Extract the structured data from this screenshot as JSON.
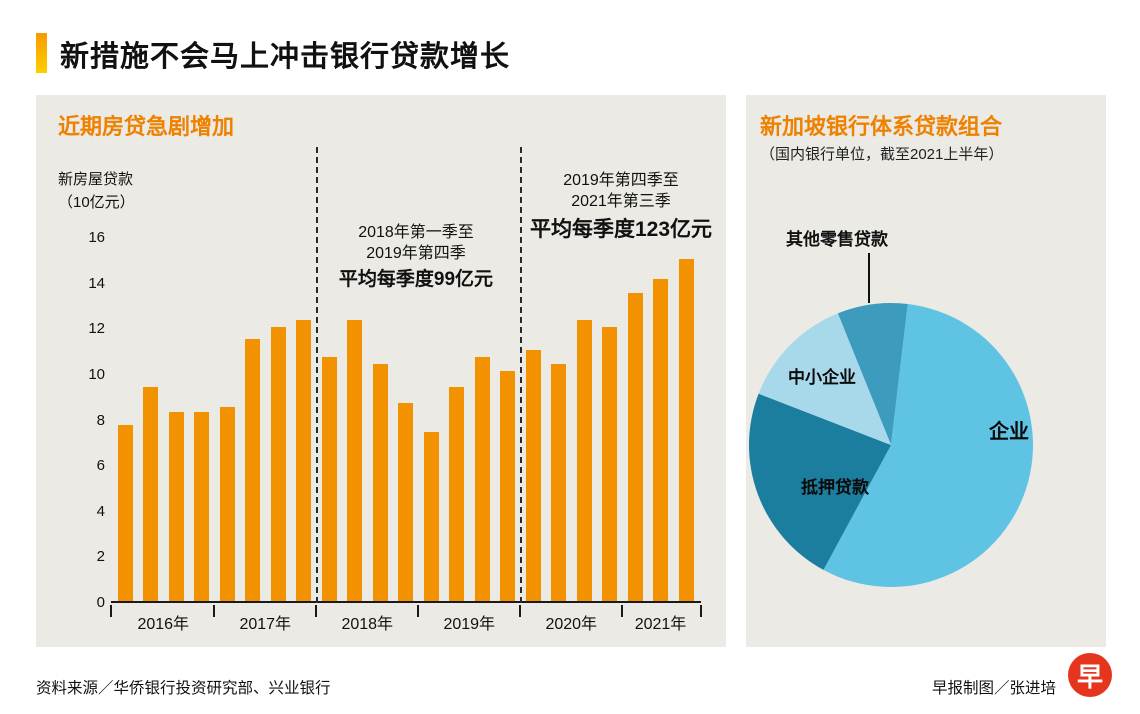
{
  "page": {
    "title": "新措施不会马上冲击银行贷款增长",
    "source": "资料来源／华侨银行投资研究部、兴业银行",
    "credit": "早报制图／张进培",
    "logo_char": "早"
  },
  "colors": {
    "accent_orange": "#ee8200",
    "bar_orange": "#f39200",
    "panel_gray": "#ebeae5",
    "logo_red": "#e5351f",
    "title_accent_gradient_top": "#f59b00",
    "title_accent_gradient_bottom": "#ffce00"
  },
  "chart_data": [
    {
      "type": "bar",
      "title": "近期房贷急剧增加",
      "ylabel_lines": [
        "新房屋贷款",
        "（10亿元）"
      ],
      "ylim": [
        0,
        16
      ],
      "yticks": [
        0,
        2,
        4,
        6,
        8,
        10,
        12,
        14,
        16
      ],
      "categories": [
        "2016年",
        "2017年",
        "2018年",
        "2019年",
        "2020年",
        "2021年"
      ],
      "bars_per_category": [
        4,
        4,
        4,
        4,
        4,
        3
      ],
      "values": [
        7.7,
        9.4,
        8.3,
        8.3,
        8.5,
        11.5,
        12.0,
        12.3,
        10.7,
        12.3,
        10.4,
        8.7,
        7.4,
        9.4,
        10.7,
        10.1,
        11.0,
        10.4,
        12.3,
        12.0,
        13.5,
        14.1,
        15.0
      ],
      "color": "#f39200",
      "grid": false,
      "annotations": [
        {
          "lines": [
            "2018年第一季至",
            "2019年第四季"
          ],
          "bold": "平均每季度99亿元"
        },
        {
          "lines": [
            "2019年第四季至",
            "2021年第三季"
          ],
          "bold": "平均每季度123亿元"
        }
      ]
    },
    {
      "type": "pie",
      "title": "新加坡银行体系贷款组合",
      "subtitle": "（国内银行单位，截至2021上半年）",
      "start_angle_deg": -22,
      "legend_position": "on-slices",
      "slices": [
        {
          "label": "其他零售贷款",
          "value": 8,
          "color": "#3d9cbd"
        },
        {
          "label": "企业",
          "value": 56,
          "color": "#5fc3e3"
        },
        {
          "label": "抵押贷款",
          "value": 23,
          "color": "#1b7e9e"
        },
        {
          "label": "中小企业",
          "value": 13,
          "color": "#a8d9ea"
        }
      ]
    }
  ]
}
